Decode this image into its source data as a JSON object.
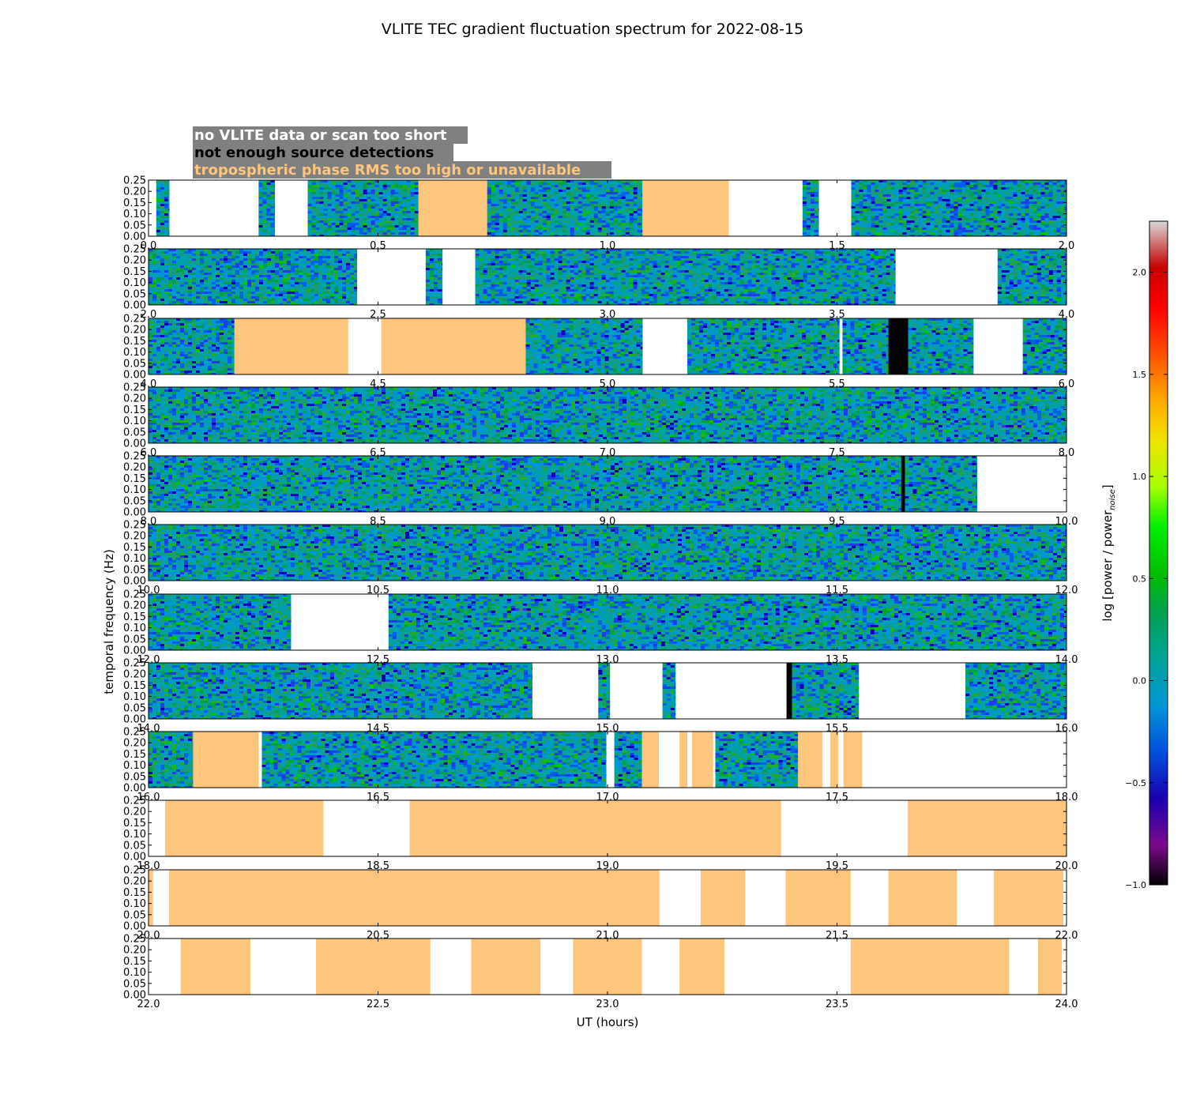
{
  "chart_data": {
    "type": "heatmap",
    "title": "VLITE TEC gradient fluctuation spectrum for 2022-08-15",
    "xlabel": "UT (hours)",
    "ylabel": "temporal frequency (Hz)",
    "colorbar_label": "log [power / power",
    "colorbar_label_sub": "noise",
    "colorbar_label_close": "]",
    "colorbar_range": [
      -1.0,
      2.25
    ],
    "colorbar_ticks": [
      "−1.0",
      "−0.5",
      "0.0",
      "0.5",
      "1.0",
      "1.5",
      "2.0"
    ],
    "colorbar_tick_values": [
      -1.0,
      -0.5,
      0.0,
      0.5,
      1.0,
      1.5,
      2.0
    ],
    "colormap": "spectral",
    "yticks": [
      "0.00",
      "0.05",
      "0.10",
      "0.15",
      "0.20",
      "0.25"
    ],
    "ylim": [
      0,
      0.25
    ],
    "legend": [
      {
        "label": "no VLITE data or scan too short",
        "color": "#ffffff"
      },
      {
        "label": "not enough source detections",
        "color": "#000000"
      },
      {
        "label": "tropospheric phase RMS too high or unavailable",
        "color": "#fec57c"
      }
    ],
    "colors": {
      "flag_troposphere": "#fec57c",
      "flag_detections": "#000000",
      "no_data": "#ffffff",
      "legend_bg": "#808080"
    },
    "panels": [
      {
        "range": [
          0,
          2
        ],
        "xticks": [
          "0.0",
          "0.5",
          "1.0",
          "1.5",
          "2.0"
        ],
        "segments": [
          [
            "none",
            0,
            0.017
          ],
          [
            "data",
            0.017,
            0.045
          ],
          [
            "none",
            0.045,
            0.24
          ],
          [
            "data",
            0.24,
            0.275
          ],
          [
            "none",
            0.275,
            0.347
          ],
          [
            "data",
            0.347,
            0.588
          ],
          [
            "trop",
            0.588,
            0.738
          ],
          [
            "data",
            0.738,
            1.076
          ],
          [
            "trop",
            1.076,
            1.264
          ],
          [
            "none",
            1.264,
            1.425
          ],
          [
            "data",
            1.425,
            1.46
          ],
          [
            "none",
            1.46,
            1.531
          ],
          [
            "data",
            1.531,
            2.0
          ]
        ]
      },
      {
        "range": [
          2,
          4
        ],
        "xticks": [
          "2.0",
          "2.5",
          "3.0",
          "3.5",
          "4.0"
        ],
        "segments": [
          [
            "data",
            2.0,
            2.454
          ],
          [
            "none",
            2.454,
            2.604
          ],
          [
            "data",
            2.604,
            2.64
          ],
          [
            "none",
            2.64,
            2.712
          ],
          [
            "data",
            2.712,
            3.627
          ],
          [
            "none",
            3.627,
            3.85
          ],
          [
            "data",
            3.85,
            4.0
          ]
        ]
      },
      {
        "range": [
          4,
          6
        ],
        "xticks": [
          "4.0",
          "4.5",
          "5.0",
          "5.5",
          "6.0"
        ],
        "segments": [
          [
            "data",
            4.0,
            4.187
          ],
          [
            "trop",
            4.187,
            4.435
          ],
          [
            "none",
            4.435,
            4.507
          ],
          [
            "trop",
            4.507,
            4.822
          ],
          [
            "data",
            4.822,
            5.076
          ],
          [
            "none",
            5.076,
            5.174
          ],
          [
            "data",
            5.174,
            5.505
          ],
          [
            "none",
            5.505,
            5.512
          ],
          [
            "data",
            5.512,
            5.612
          ],
          [
            "bad",
            5.612,
            5.655
          ],
          [
            "data",
            5.655,
            5.797
          ],
          [
            "none",
            5.797,
            5.905
          ],
          [
            "data",
            5.905,
            6.0
          ]
        ]
      },
      {
        "range": [
          6,
          8
        ],
        "xticks": [
          "6.0",
          "6.5",
          "7.0",
          "7.5",
          "8.0"
        ],
        "segments": [
          [
            "data",
            6.0,
            8.0
          ]
        ]
      },
      {
        "range": [
          8,
          10
        ],
        "xticks": [
          "8.0",
          "8.5",
          "9.0",
          "9.5",
          "10.0"
        ],
        "segments": [
          [
            "data",
            8.0,
            9.64
          ],
          [
            "bad",
            9.64,
            9.648
          ],
          [
            "data",
            9.648,
            9.805
          ],
          [
            "none",
            9.805,
            10.0
          ]
        ]
      },
      {
        "range": [
          10,
          12
        ],
        "xticks": [
          "10.0",
          "10.5",
          "11.0",
          "11.5",
          "12.0"
        ],
        "segments": [
          [
            "data",
            10.0,
            12.0
          ]
        ]
      },
      {
        "range": [
          12,
          14
        ],
        "xticks": [
          "12.0",
          "12.5",
          "13.0",
          "13.5",
          "14.0"
        ],
        "segments": [
          [
            "data",
            12.0,
            12.31
          ],
          [
            "none",
            12.31,
            12.523
          ],
          [
            "data",
            12.523,
            14.0
          ]
        ]
      },
      {
        "range": [
          14,
          16
        ],
        "xticks": [
          "14.0",
          "14.5",
          "15.0",
          "15.5",
          "16.0"
        ],
        "segments": [
          [
            "data",
            14.0,
            14.836
          ],
          [
            "none",
            14.836,
            14.98
          ],
          [
            "data",
            14.98,
            15.005
          ],
          [
            "none",
            15.005,
            15.12
          ],
          [
            "data",
            15.12,
            15.148
          ],
          [
            "none",
            15.148,
            15.39
          ],
          [
            "bad",
            15.39,
            15.402
          ],
          [
            "data",
            15.402,
            15.547
          ],
          [
            "none",
            15.547,
            15.78
          ],
          [
            "data",
            15.78,
            16.0
          ]
        ]
      },
      {
        "range": [
          16,
          18
        ],
        "xticks": [
          "16.0",
          "16.5",
          "17.0",
          "17.5",
          "18.0"
        ],
        "segments": [
          [
            "data",
            16.0,
            16.097
          ],
          [
            "trop",
            16.097,
            16.24
          ],
          [
            "none",
            16.24,
            16.247
          ],
          [
            "data",
            16.247,
            16.997
          ],
          [
            "none",
            16.997,
            17.015
          ],
          [
            "data",
            17.015,
            17.075
          ],
          [
            "trop",
            17.075,
            17.112
          ],
          [
            "none",
            17.112,
            17.157
          ],
          [
            "trop",
            17.157,
            17.174
          ],
          [
            "none",
            17.174,
            17.184
          ],
          [
            "trop",
            17.184,
            17.23
          ],
          [
            "none",
            17.23,
            17.235
          ],
          [
            "data",
            17.235,
            17.415
          ],
          [
            "trop",
            17.415,
            17.468
          ],
          [
            "none",
            17.468,
            17.485
          ],
          [
            "trop",
            17.485,
            17.503
          ],
          [
            "none",
            17.503,
            17.514
          ],
          [
            "trop",
            17.514,
            17.555
          ],
          [
            "none",
            17.555,
            18.0
          ]
        ]
      },
      {
        "range": [
          18,
          20
        ],
        "xticks": [
          "18.0",
          "18.5",
          "19.0",
          "19.5",
          "20.0"
        ],
        "segments": [
          [
            "none",
            18.0,
            18.036
          ],
          [
            "trop",
            18.036,
            18.381
          ],
          [
            "none",
            18.381,
            18.569
          ],
          [
            "trop",
            18.569,
            19.378
          ],
          [
            "none",
            19.378,
            19.654
          ],
          [
            "trop",
            19.654,
            20.0
          ]
        ]
      },
      {
        "range": [
          20,
          22
        ],
        "xticks": [
          "20.0",
          "20.5",
          "21.0",
          "21.5",
          "22.0"
        ],
        "segments": [
          [
            "trop",
            20.0,
            20.01
          ],
          [
            "none",
            20.01,
            20.045
          ],
          [
            "trop",
            20.045,
            21.113
          ],
          [
            "none",
            21.113,
            21.203
          ],
          [
            "trop",
            21.203,
            21.3
          ],
          [
            "none",
            21.3,
            21.388
          ],
          [
            "trop",
            21.388,
            21.53
          ],
          [
            "none",
            21.53,
            21.612
          ],
          [
            "trop",
            21.612,
            21.761
          ],
          [
            "none",
            21.761,
            21.842
          ],
          [
            "trop",
            21.842,
            21.993
          ],
          [
            "none",
            21.993,
            22.0
          ]
        ]
      },
      {
        "range": [
          22,
          24
        ],
        "xticks": [
          "22.0",
          "22.5",
          "23.0",
          "23.5",
          "24.0"
        ],
        "segments": [
          [
            "none",
            22.0,
            22.07
          ],
          [
            "trop",
            22.07,
            22.222
          ],
          [
            "none",
            22.222,
            22.365
          ],
          [
            "trop",
            22.365,
            22.614
          ],
          [
            "none",
            22.614,
            22.703
          ],
          [
            "trop",
            22.703,
            22.854
          ],
          [
            "none",
            22.854,
            22.925
          ],
          [
            "trop",
            22.925,
            23.075
          ],
          [
            "none",
            23.075,
            23.157
          ],
          [
            "trop",
            23.157,
            23.255
          ],
          [
            "none",
            23.255,
            23.53
          ],
          [
            "trop",
            23.53,
            23.875
          ],
          [
            "none",
            23.875,
            23.938
          ],
          [
            "trop",
            23.938,
            23.99
          ],
          [
            "none",
            23.99,
            24.0
          ]
        ]
      }
    ]
  }
}
